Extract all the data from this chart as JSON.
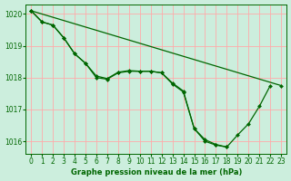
{
  "title": "Graphe pression niveau de la mer (hPa)",
  "background_color": "#cceedd",
  "grid_color": "#ffaaaa",
  "line_color": "#006600",
  "marker_color": "#006600",
  "xlim": [
    -0.5,
    23.5
  ],
  "ylim": [
    1015.6,
    1020.3
  ],
  "yticks": [
    1016,
    1017,
    1018,
    1019,
    1020
  ],
  "xticks": [
    0,
    1,
    2,
    3,
    4,
    5,
    6,
    7,
    8,
    9,
    10,
    11,
    12,
    13,
    14,
    15,
    16,
    17,
    18,
    19,
    20,
    21,
    22,
    23
  ],
  "series": [
    {
      "x": [
        0,
        1,
        2,
        3,
        4,
        5,
        6,
        7,
        8,
        9,
        10,
        11,
        12,
        13,
        14,
        15,
        16,
        17,
        18,
        19,
        20,
        21,
        22
      ],
      "y": [
        1020.1,
        1019.75,
        1019.65,
        1019.25,
        1018.75,
        1018.45,
        1018.0,
        1017.95,
        1018.15,
        1018.2,
        1018.2,
        1018.2,
        1018.15,
        1017.8,
        1017.55,
        1016.4,
        1016.0,
        1015.88,
        1015.82,
        1016.2,
        1016.55,
        1017.1,
        1017.75
      ]
    },
    {
      "x": [
        0,
        1,
        2,
        3,
        4,
        5,
        6,
        7,
        8,
        9,
        10,
        11,
        12,
        13,
        14,
        15,
        16,
        17,
        18
      ],
      "y": [
        1020.1,
        1019.75,
        1019.65,
        1019.25,
        1018.75,
        1018.45,
        1018.05,
        1017.97,
        1018.17,
        1018.22,
        1018.2,
        1018.2,
        1018.15,
        1017.83,
        1017.58,
        1016.4,
        1016.05,
        1015.9,
        1015.82
      ]
    },
    {
      "x": [
        0,
        23
      ],
      "y": [
        1020.1,
        1017.75
      ]
    }
  ]
}
